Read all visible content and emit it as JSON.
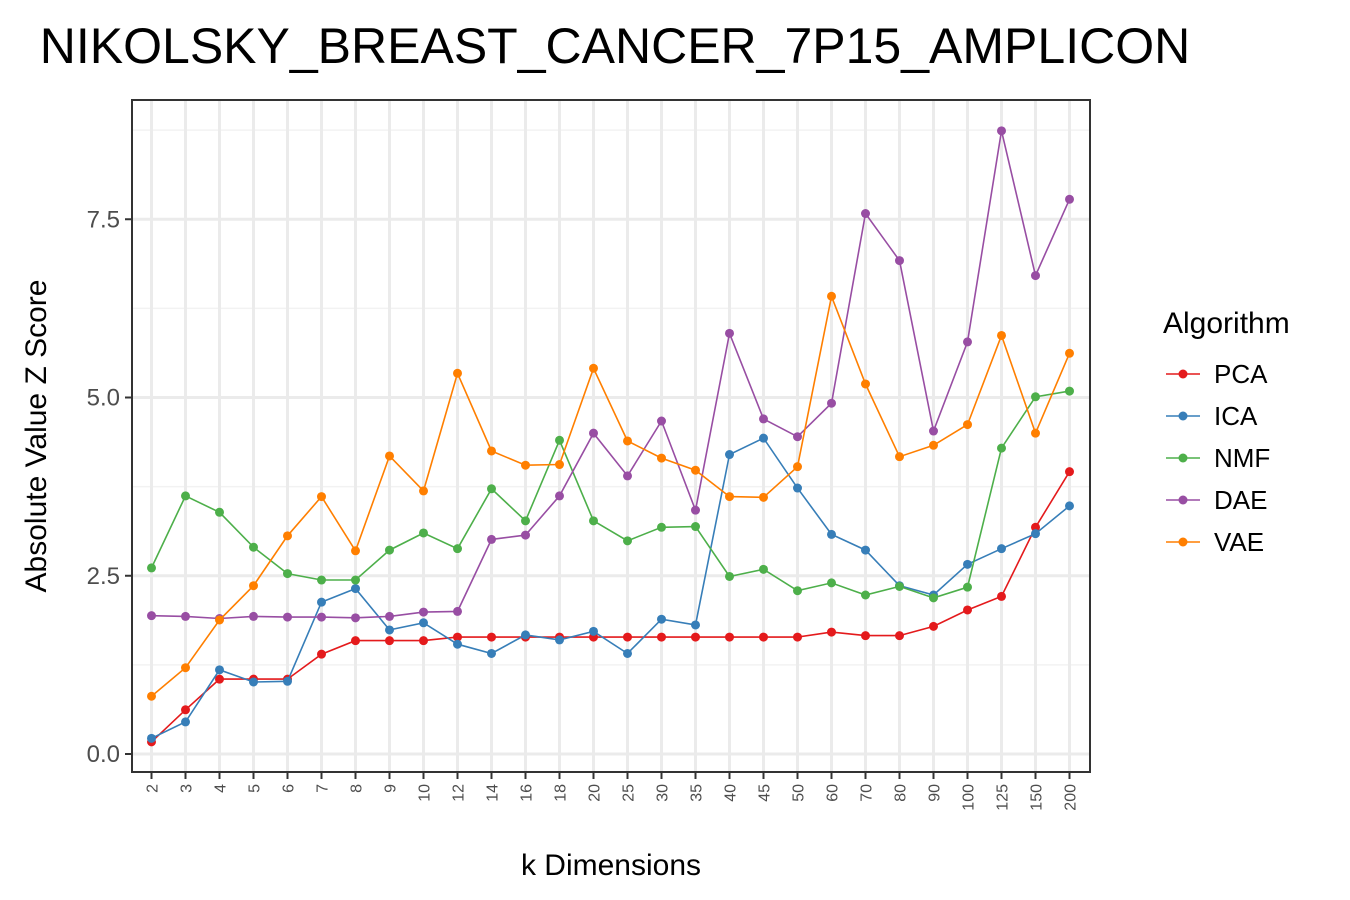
{
  "chart_data": {
    "type": "line",
    "title": "NIKOLSKY_BREAST_CANCER_7P15_AMPLICON",
    "xlabel": "k Dimensions",
    "ylabel": "Absolute Value Z Score",
    "categories": [
      "2",
      "3",
      "4",
      "5",
      "6",
      "7",
      "8",
      "9",
      "10",
      "12",
      "14",
      "16",
      "18",
      "20",
      "25",
      "30",
      "35",
      "40",
      "45",
      "50",
      "60",
      "70",
      "80",
      "90",
      "100",
      "125",
      "150",
      "200"
    ],
    "yticks": [
      "0.0",
      "2.5",
      "5.0",
      "7.5"
    ],
    "ylim": [
      -0.25,
      9.1
    ],
    "grid": true,
    "legend_title": "Algorithm",
    "legend_position": "right",
    "series": [
      {
        "name": "PCA",
        "color": "#e41a1c",
        "values": [
          0.17,
          0.62,
          1.05,
          1.05,
          1.05,
          1.4,
          1.59,
          1.59,
          1.59,
          1.64,
          1.64,
          1.64,
          1.64,
          1.64,
          1.64,
          1.64,
          1.64,
          1.64,
          1.64,
          1.64,
          1.71,
          1.66,
          1.66,
          1.79,
          2.02,
          2.21,
          3.18,
          3.96
        ]
      },
      {
        "name": "ICA",
        "color": "#377eb8",
        "values": [
          0.22,
          0.45,
          1.18,
          1.01,
          1.02,
          2.13,
          2.32,
          1.74,
          1.84,
          1.54,
          1.41,
          1.67,
          1.6,
          1.72,
          1.41,
          1.89,
          1.81,
          4.2,
          4.43,
          3.73,
          3.08,
          2.86,
          2.36,
          2.23,
          2.66,
          2.88,
          3.09,
          3.48
        ]
      },
      {
        "name": "NMF",
        "color": "#4daf4a",
        "values": [
          2.61,
          3.62,
          3.39,
          2.9,
          2.53,
          2.44,
          2.44,
          2.86,
          3.1,
          2.88,
          3.72,
          3.27,
          4.4,
          3.27,
          2.99,
          3.18,
          3.19,
          2.49,
          2.59,
          2.29,
          2.4,
          2.23,
          2.35,
          2.19,
          2.34,
          4.29,
          5.01,
          5.09
        ]
      },
      {
        "name": "DAE",
        "color": "#984ea3",
        "values": [
          1.94,
          1.93,
          1.9,
          1.93,
          1.92,
          1.92,
          1.91,
          1.93,
          1.99,
          2.0,
          3.01,
          3.07,
          3.62,
          4.5,
          3.9,
          4.67,
          3.42,
          5.9,
          4.7,
          4.45,
          4.92,
          7.58,
          6.92,
          4.53,
          5.78,
          8.74,
          6.71,
          7.78
        ]
      },
      {
        "name": "VAE",
        "color": "#ff7f00",
        "values": [
          0.81,
          1.21,
          1.88,
          2.36,
          3.06,
          3.61,
          2.85,
          4.18,
          3.69,
          5.34,
          4.25,
          4.05,
          4.06,
          5.41,
          4.39,
          4.15,
          3.98,
          3.61,
          3.6,
          4.03,
          6.42,
          5.19,
          4.17,
          4.33,
          4.62,
          5.87,
          4.5,
          5.62
        ]
      }
    ]
  }
}
